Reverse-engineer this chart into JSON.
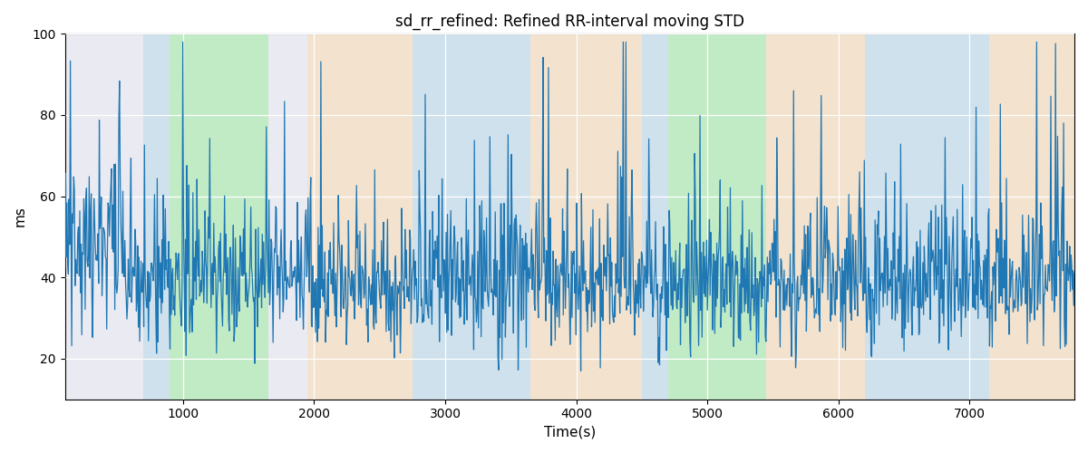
{
  "title": "sd_rr_refined: Refined RR-interval moving STD",
  "xlabel": "Time(s)",
  "ylabel": "ms",
  "xlim": [
    100,
    7800
  ],
  "ylim": [
    10,
    100
  ],
  "yticks": [
    20,
    40,
    60,
    80,
    100
  ],
  "xticks": [
    1000,
    2000,
    3000,
    4000,
    5000,
    6000,
    7000
  ],
  "bg_bands": [
    {
      "xmin": 700,
      "xmax": 900,
      "color": "#add8e6",
      "alpha": 0.45
    },
    {
      "xmin": 900,
      "xmax": 1650,
      "color": "#90ee90",
      "alpha": 0.45
    },
    {
      "xmin": 1950,
      "xmax": 2750,
      "color": "#ffdaa0",
      "alpha": 0.45
    },
    {
      "xmin": 2750,
      "xmax": 3650,
      "color": "#add8e6",
      "alpha": 0.45
    },
    {
      "xmin": 3650,
      "xmax": 4500,
      "color": "#ffdaa0",
      "alpha": 0.45
    },
    {
      "xmin": 4500,
      "xmax": 4700,
      "color": "#add8e6",
      "alpha": 0.45
    },
    {
      "xmin": 4700,
      "xmax": 5450,
      "color": "#90ee90",
      "alpha": 0.45
    },
    {
      "xmin": 5450,
      "xmax": 6200,
      "color": "#ffdaa0",
      "alpha": 0.45
    },
    {
      "xmin": 6200,
      "xmax": 7150,
      "color": "#add8e6",
      "alpha": 0.45
    },
    {
      "xmin": 7150,
      "xmax": 7800,
      "color": "#ffdaa0",
      "alpha": 0.45
    }
  ],
  "line_color": "#1f77b4",
  "line_width": 0.9,
  "bg_color": "#eaeaf2",
  "grid_color": "white",
  "title_fontsize": 12,
  "label_fontsize": 11,
  "tick_fontsize": 10,
  "seed": 1234,
  "n_points": 1500,
  "x_start": 100,
  "x_end": 7800
}
